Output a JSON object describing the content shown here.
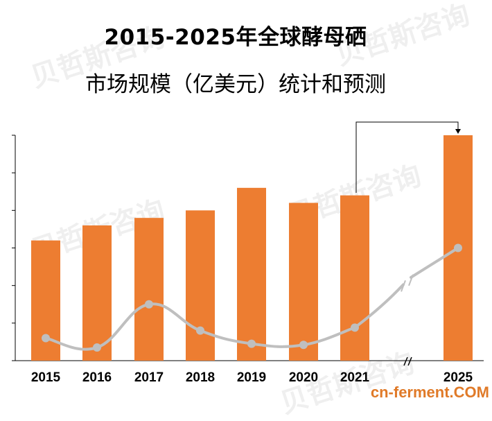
{
  "title": {
    "line1": "2015-2025年全球酵母硒",
    "line2": "市场规模（亿美元）统计和预测"
  },
  "watermark_text": "贝哲斯咨询",
  "source_mark": "cn-ferment.COM",
  "colors": {
    "bar": "#ED7D31",
    "line": "#BFBFBF",
    "axis": "#000000"
  },
  "chart_data": {
    "type": "bar",
    "categories": [
      "2015",
      "2016",
      "2017",
      "2018",
      "2019",
      "2020",
      "2021",
      "2025"
    ],
    "series": [
      {
        "type": "bar",
        "values": [
          3.2,
          3.6,
          3.8,
          4.0,
          4.6,
          4.2,
          4.4,
          6.0
        ]
      },
      {
        "type": "line",
        "values": [
          0.6,
          0.35,
          1.5,
          0.8,
          0.45,
          0.42,
          0.88,
          3.0
        ]
      }
    ],
    "ylim": [
      0,
      6
    ],
    "axis_break_between": [
      "2021",
      "2025"
    ],
    "annotation": "arrow from 2021 bar to 2025 bar",
    "grid": false,
    "legend": "none",
    "ytick_labels_shown": false
  }
}
